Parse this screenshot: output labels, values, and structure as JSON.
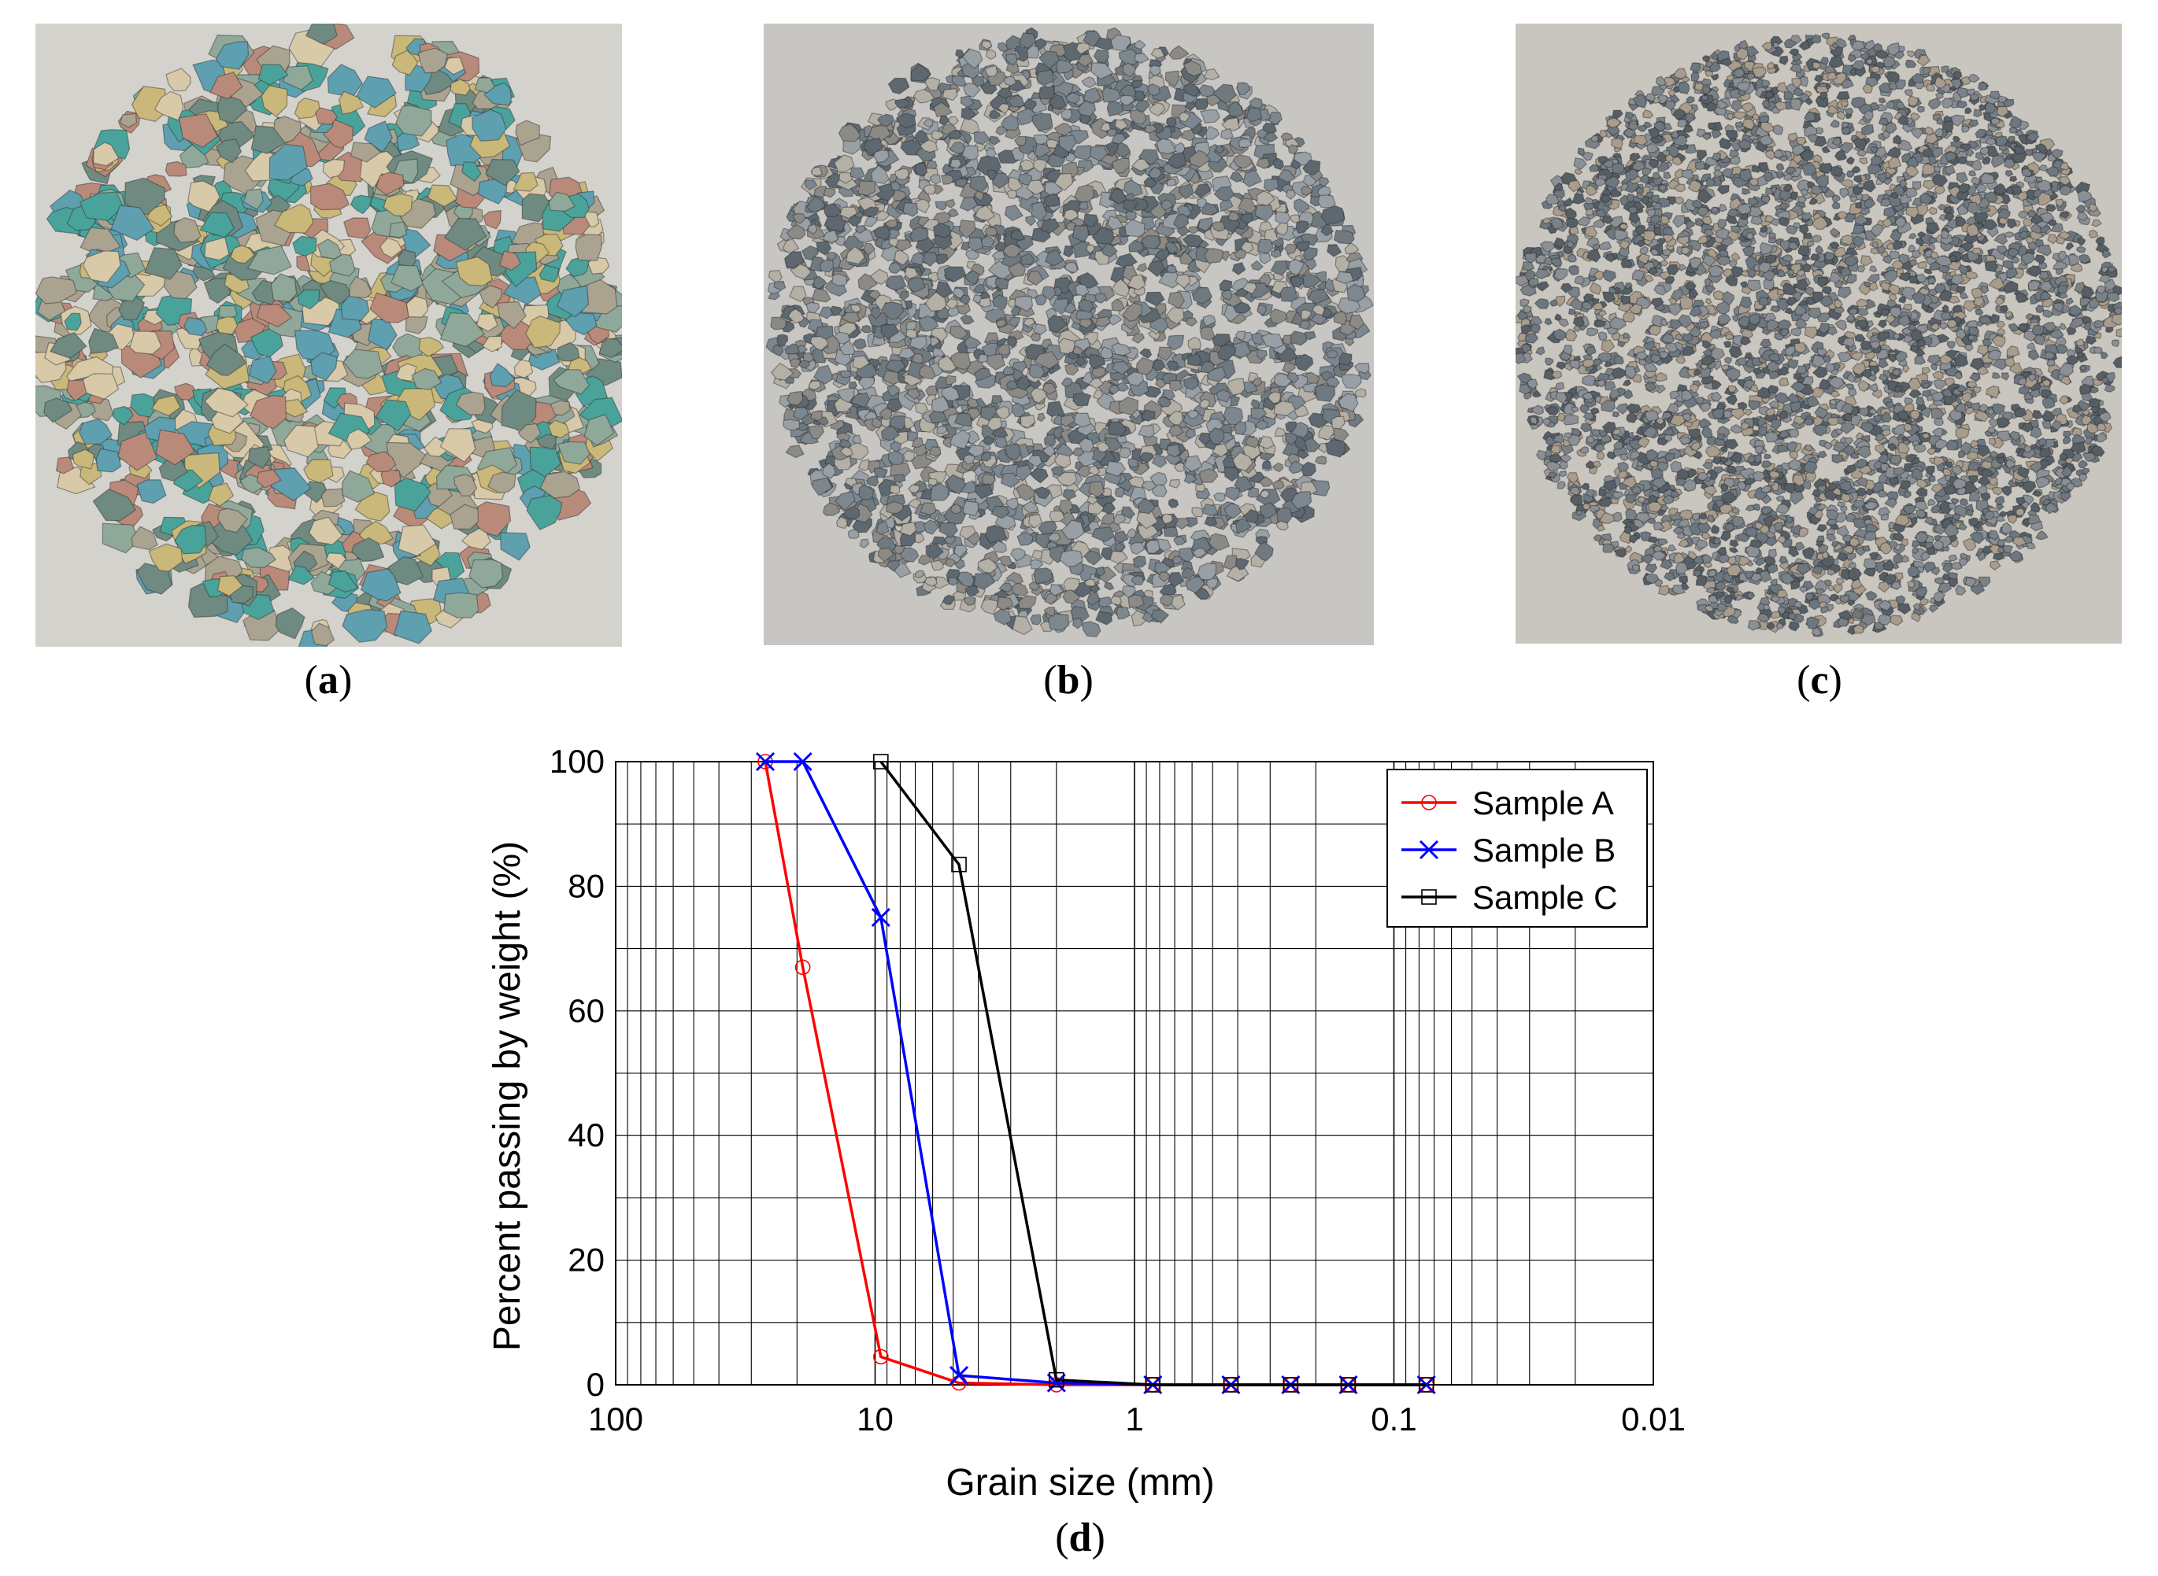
{
  "panels": [
    {
      "label_open": "(",
      "label_letter": "a",
      "label_close": ")",
      "description": "coarse multicolored crushed stone aggregate",
      "stone_palette": [
        "#8fa89a",
        "#4aa39a",
        "#c9b87a",
        "#b98a7a",
        "#6f8a80",
        "#d8c9a8",
        "#a9a390",
        "#5e9fb0"
      ]
    },
    {
      "label_open": "(",
      "label_letter": "b",
      "label_close": ")",
      "description": "medium gray crushed stone aggregate",
      "stone_palette": [
        "#7d8790",
        "#98a0a6",
        "#5e6870",
        "#b4b0a6",
        "#6f7a80",
        "#8c8a86"
      ]
    },
    {
      "label_open": "(",
      "label_letter": "c",
      "label_close": ")",
      "description": "fine gray crushed stone aggregate",
      "stone_palette": [
        "#6d7780",
        "#8a9096",
        "#575f66",
        "#a89c8c",
        "#7a8288"
      ]
    }
  ],
  "chart_label": {
    "open": "(",
    "letter": "d",
    "close": ")"
  },
  "chart_data": {
    "type": "line",
    "xlabel": "Grain size (mm)",
    "ylabel": "Percent passing by weight (%)",
    "x_scale": "log",
    "x_reversed": true,
    "xlim": [
      100,
      0.01
    ],
    "ylim": [
      0,
      100
    ],
    "xticks": [
      "100",
      "10",
      "1",
      "0.1",
      "0.01"
    ],
    "yticks": [
      "0",
      "20",
      "40",
      "60",
      "80",
      "100"
    ],
    "grid": true,
    "legend_position": "top-right",
    "series": [
      {
        "name": "Sample A",
        "color": "#ff0000",
        "marker": "circle",
        "x": [
          26.5,
          19,
          9.5,
          4.75,
          2,
          0.85,
          0.425,
          0.25,
          0.15,
          0.075
        ],
        "y": [
          100,
          67,
          4.5,
          0.3,
          0,
          0,
          0,
          0,
          0,
          0
        ]
      },
      {
        "name": "Sample B",
        "color": "#0000ff",
        "marker": "x",
        "x": [
          26.5,
          19,
          9.5,
          4.75,
          2,
          0.85,
          0.425,
          0.25,
          0.15,
          0.075
        ],
        "y": [
          100,
          100,
          75,
          1.5,
          0.3,
          0,
          0,
          0,
          0,
          0
        ]
      },
      {
        "name": "Sample C",
        "color": "#000000",
        "marker": "square",
        "x": [
          9.5,
          4.75,
          2,
          0.85,
          0.425,
          0.25,
          0.15,
          0.075
        ],
        "y": [
          100,
          83.5,
          0.8,
          0,
          0,
          0,
          0,
          0
        ]
      }
    ]
  }
}
